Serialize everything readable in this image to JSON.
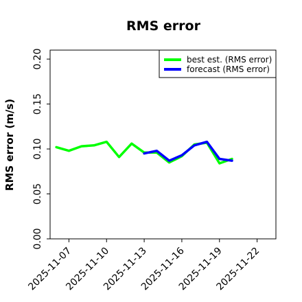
{
  "chart_data": {
    "type": "line",
    "title": "RMS error",
    "xlabel": "",
    "ylabel": "RMS error (m/s)",
    "ylim": [
      0.0,
      0.21
    ],
    "xlim": [
      "2025-11-05T12:00",
      "2025-11-23T12:00"
    ],
    "yticks": [
      "0.00",
      "0.05",
      "0.10",
      "0.15",
      "0.20"
    ],
    "xticks": [
      "2025-11-07",
      "2025-11-10",
      "2025-11-13",
      "2025-11-16",
      "2025-11-19",
      "2025-11-22"
    ],
    "highlight_tick": "2025-11-13",
    "highlight_color": "#228b22",
    "grid": false,
    "legend_position": "top-right",
    "series": [
      {
        "name": "best est. (RMS error)",
        "color": "#00ff00",
        "x": [
          "2025-11-06",
          "2025-11-07",
          "2025-11-08",
          "2025-11-09",
          "2025-11-10",
          "2025-11-11",
          "2025-11-12",
          "2025-11-13",
          "2025-11-14",
          "2025-11-15",
          "2025-11-16",
          "2025-11-17",
          "2025-11-18",
          "2025-11-19",
          "2025-11-20"
        ],
        "y": [
          0.102,
          0.098,
          0.103,
          0.104,
          0.108,
          0.091,
          0.106,
          0.096,
          0.096,
          0.085,
          0.092,
          0.105,
          0.107,
          0.084,
          0.089
        ]
      },
      {
        "name": "forecast (RMS error)",
        "color": "#0000ff",
        "x": [
          "2025-11-13",
          "2025-11-14",
          "2025-11-15",
          "2025-11-16",
          "2025-11-17",
          "2025-11-18",
          "2025-11-19",
          "2025-11-20"
        ],
        "y": [
          0.095,
          0.098,
          0.087,
          0.093,
          0.104,
          0.108,
          0.089,
          0.087
        ]
      }
    ]
  }
}
